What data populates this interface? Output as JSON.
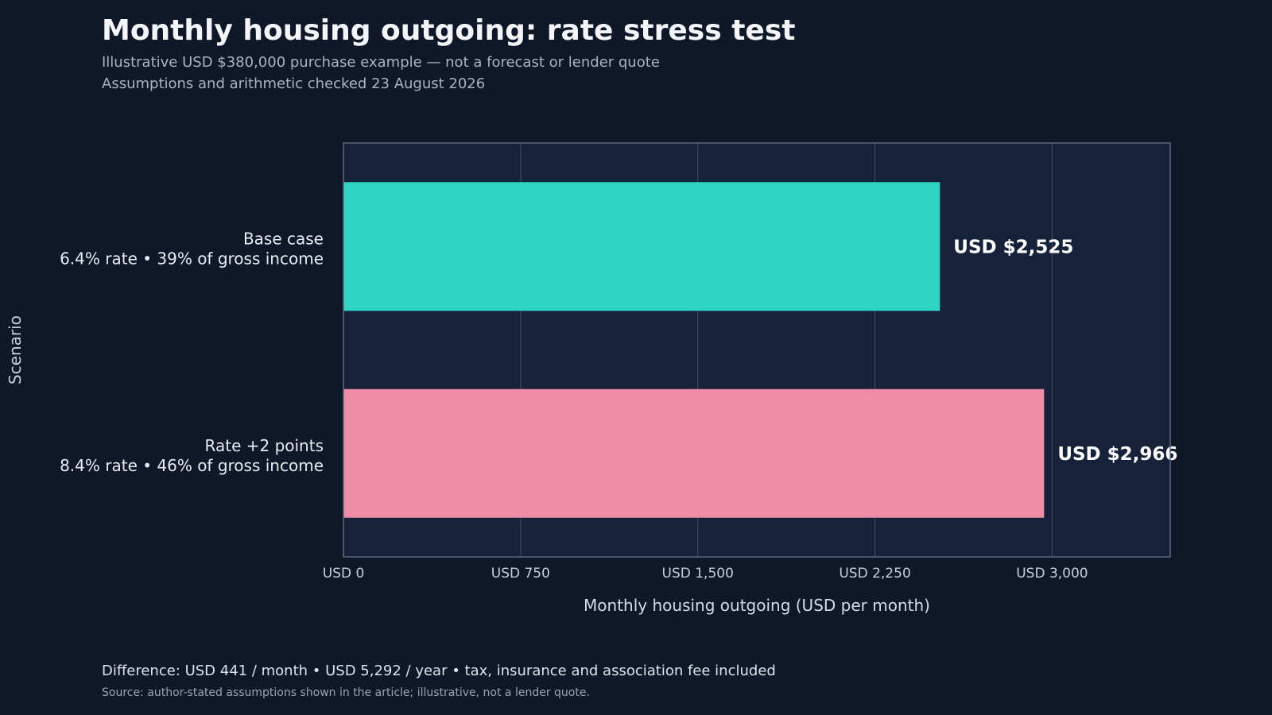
{
  "header": {
    "title": "Monthly housing outgoing: rate stress test",
    "subtitle": "Illustrative USD $380,000 purchase example — not a forecast or lender quote",
    "checked": "Assumptions and arithmetic checked 23 August 2026"
  },
  "footer": {
    "difference": "Difference: USD 441 / month • USD 5,292 / year • tax, insurance and association fee included",
    "source": "Source: author-stated assumptions shown in the article; illustrative, not a lender quote."
  },
  "chart_data": {
    "type": "bar",
    "orientation": "horizontal",
    "xlabel": "Monthly housing outgoing (USD per month)",
    "ylabel": "Scenario",
    "xlim": [
      0,
      3500
    ],
    "xticks": [
      0,
      750,
      1500,
      2250,
      3000
    ],
    "xtick_labels": [
      "USD 0",
      "USD 750",
      "USD 1,500",
      "USD 2,250",
      "USD 3,000"
    ],
    "grid": true,
    "categories": [
      {
        "name": "Base case",
        "detail": "6.4% rate • 39% of gross income"
      },
      {
        "name": "Rate +2 points",
        "detail": "8.4% rate • 46% of gross income"
      }
    ],
    "values": [
      2525,
      2966
    ],
    "data_labels": [
      "USD $2,525",
      "USD $2,966"
    ],
    "colors": [
      "#2fd4c2",
      "#ef8ca8"
    ]
  },
  "colors": {
    "background": "#0f1828",
    "plot_background": "#16223a",
    "grid": "#3a475c",
    "axis_text": "#c7ced9"
  }
}
